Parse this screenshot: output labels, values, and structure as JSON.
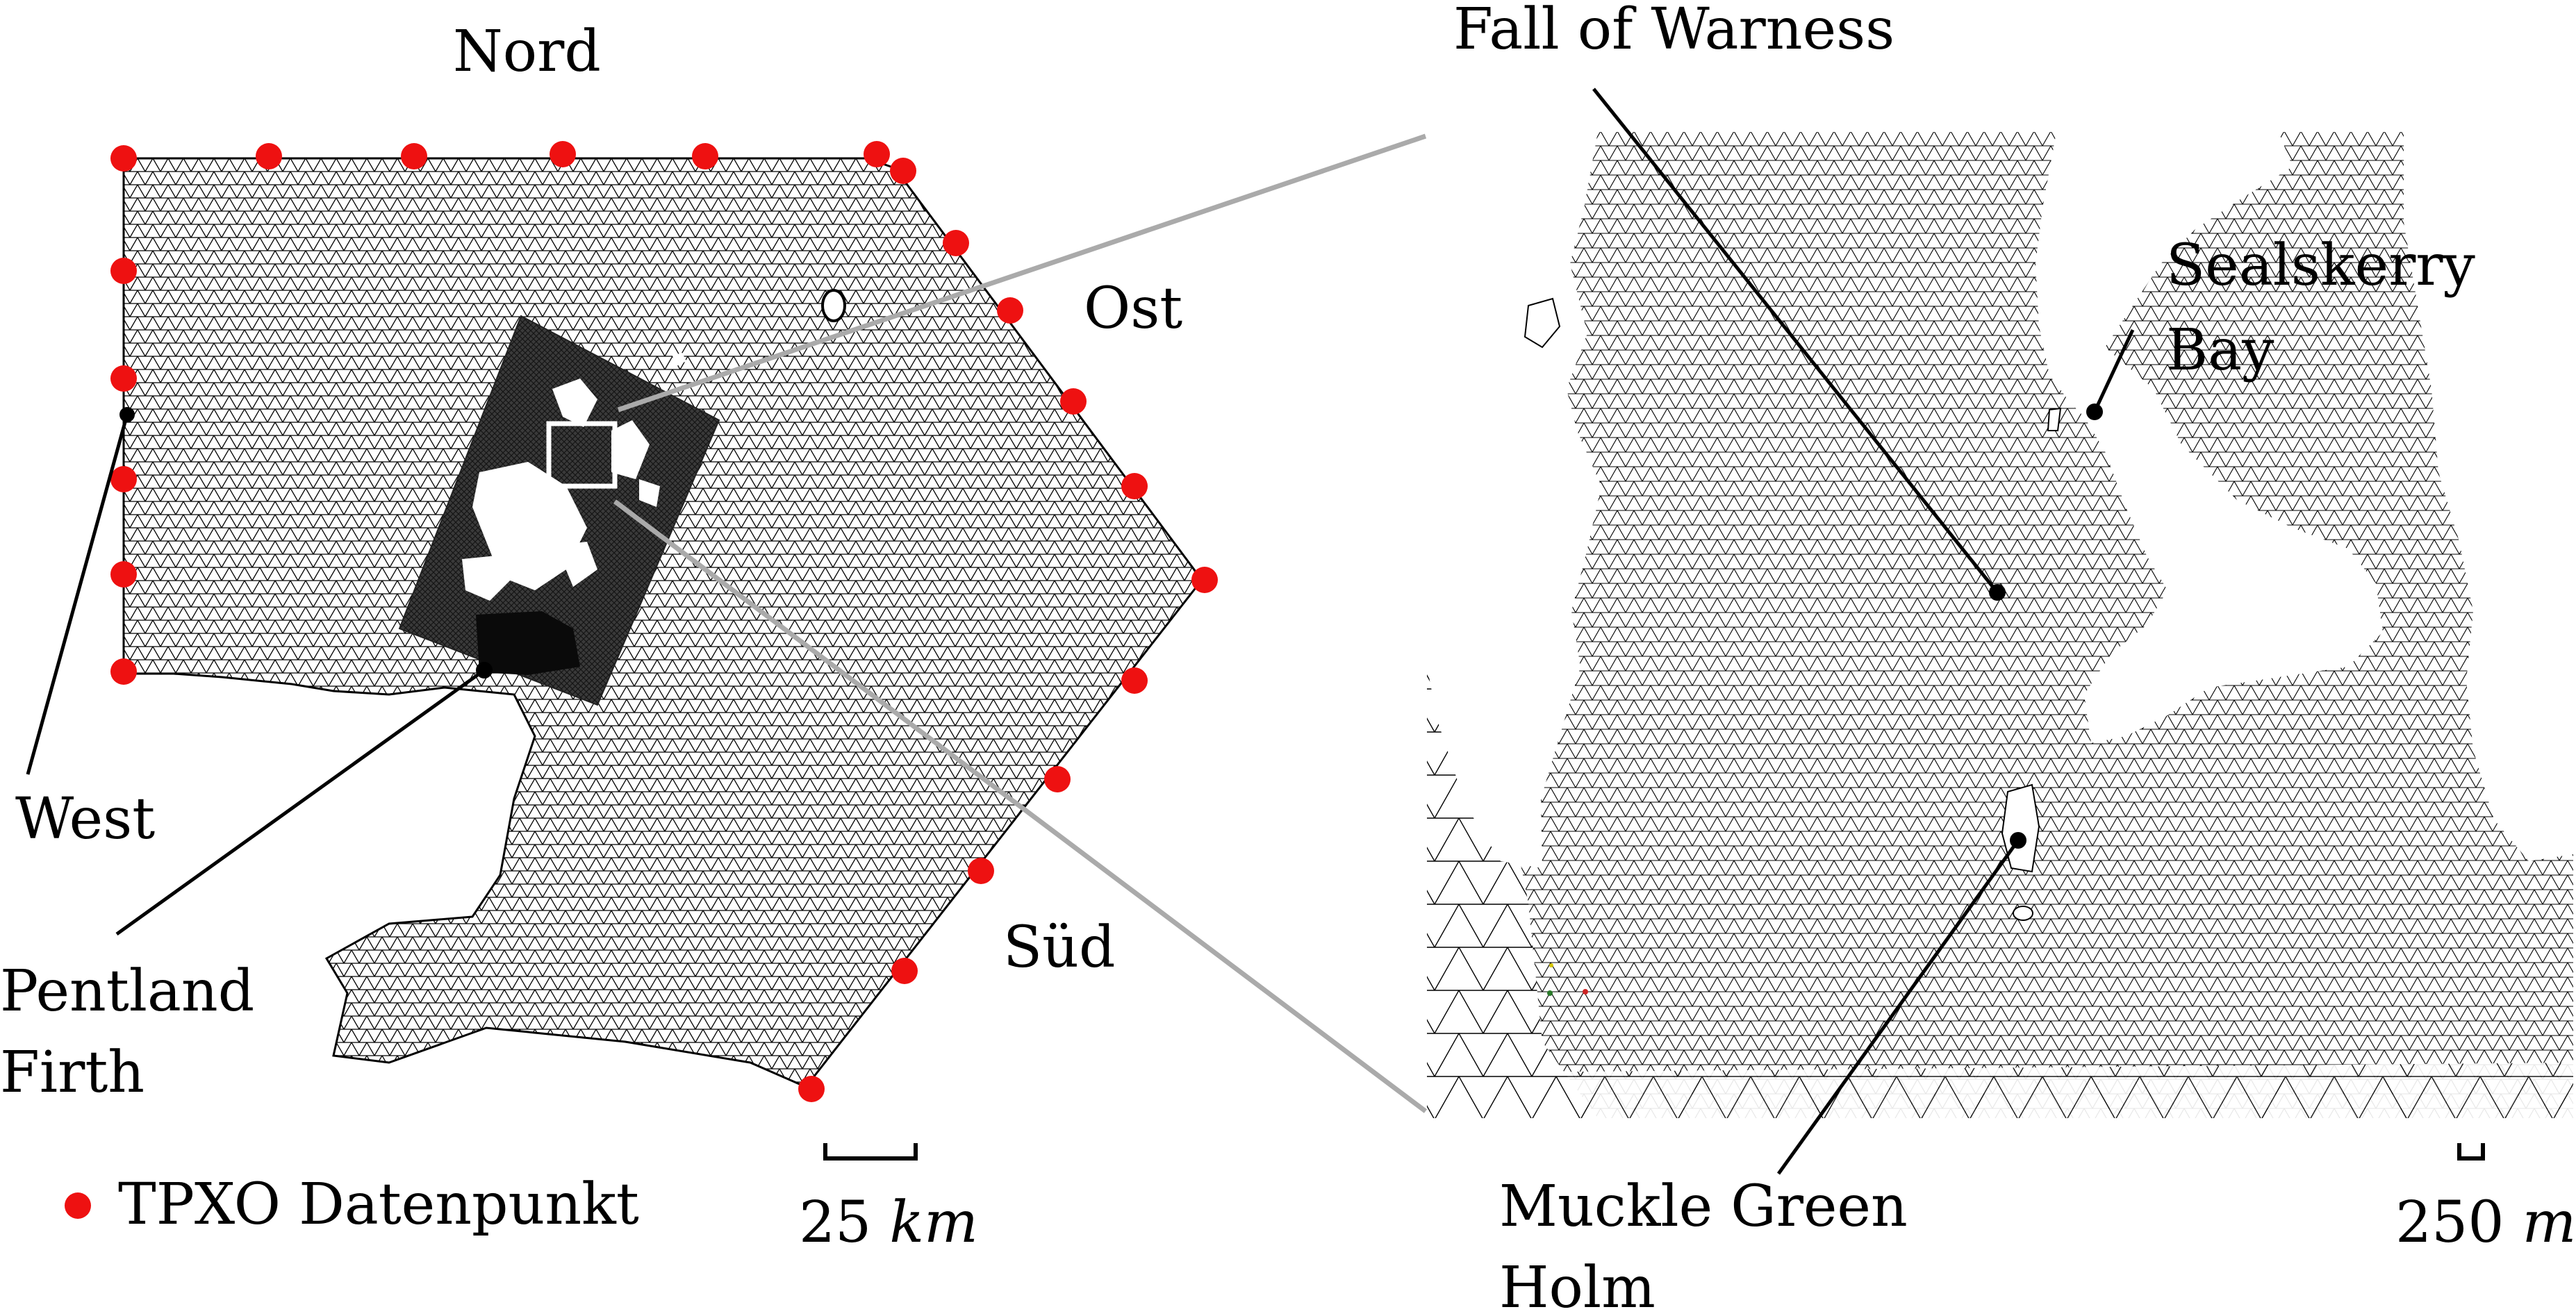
{
  "left_panel": {
    "boundary_labels": {
      "north": "Nord",
      "east": "Ost",
      "south": "Süd",
      "west": "West"
    },
    "location_label": {
      "line1": "Pentland",
      "line2": "Firth"
    },
    "legend": {
      "marker_color": "#ee1111",
      "text": "TPXO Datenpunkt"
    },
    "scale_bar": {
      "value": "25",
      "unit": "km"
    }
  },
  "right_panel": {
    "labels": {
      "fall": "Fall of Warness",
      "sealskerry_line1": "Sealskerry",
      "sealskerry_line2": "Bay",
      "muckle_line1": "Muckle Green",
      "muckle_line2": "Holm"
    },
    "scale_bar": {
      "value": "250",
      "unit": "m"
    }
  },
  "colors": {
    "mesh_line": "#000000",
    "mesh_background": "#ffffff",
    "fine_mesh": "#3a3a3a",
    "zoom_lines": "#aaaaaa",
    "tpxo_point": "#ee1111"
  }
}
